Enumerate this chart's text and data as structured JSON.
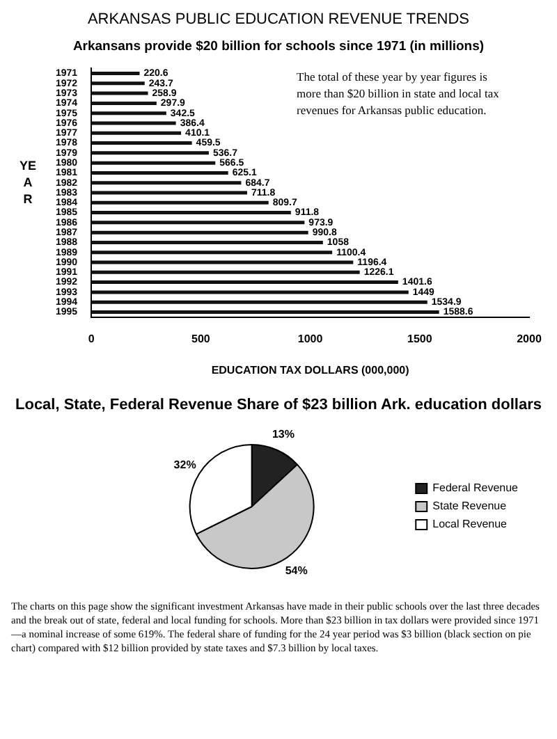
{
  "chart_data": [
    {
      "type": "bar",
      "orientation": "horizontal",
      "title": "ARKANSAS PUBLIC EDUCATION REVENUE TRENDS",
      "subtitle": "Arkansans provide $20 billion for schools since 1971 (in millions)",
      "xlabel": "EDUCATION TAX DOLLARS (000,000)",
      "ylabel": "YEAR",
      "categories": [
        "1971",
        "1972",
        "1973",
        "1974",
        "1975",
        "1976",
        "1977",
        "1978",
        "1979",
        "1980",
        "1981",
        "1982",
        "1983",
        "1984",
        "1985",
        "1986",
        "1987",
        "1988",
        "1989",
        "1990",
        "1991",
        "1992",
        "1993",
        "1994",
        "1995"
      ],
      "values": [
        220.6,
        243.7,
        258.9,
        297.9,
        342.5,
        386.4,
        410.1,
        459.5,
        536.7,
        566.5,
        625.1,
        684.7,
        711.8,
        809.7,
        911.8,
        973.9,
        990.8,
        1058,
        1100.4,
        1196.4,
        1226.1,
        1401.6,
        1449,
        1534.9,
        1588.6
      ],
      "color": "#111111",
      "xlim": [
        0,
        2000
      ],
      "xticks": [
        0,
        500,
        1000,
        1500,
        2000
      ],
      "data_labels": true,
      "grid": false,
      "legend": false,
      "annotations": [
        "The total of these year by year figures is more than $20 billion in state and local tax revenues for Arkansas public education."
      ]
    },
    {
      "type": "pie",
      "title": "Local, State, Federal Revenue Share of $23 billion Ark. education dollars",
      "categories": [
        "Federal Revenue",
        "State Revenue",
        "Local Revenue"
      ],
      "values": [
        13,
        54,
        32
      ],
      "value_labels": [
        "13%",
        "54%",
        "32%"
      ],
      "colors": [
        "#222222",
        "#c8c8c8",
        "#ffffff"
      ],
      "legend": "right",
      "annotations": [
        "The charts on this page show the significant investment Arkansas have made in their public schools over the last three decades and the break out of state, federal and local funding for schools. More than $23 billion in tax dollars were provided since 1971—a nominal increase of some 619%. The federal share of funding for the 24 year period was $3 billion (black section on pie chart) compared with $12 billion provided by state taxes and $7.3 billion by local taxes."
      ]
    }
  ]
}
